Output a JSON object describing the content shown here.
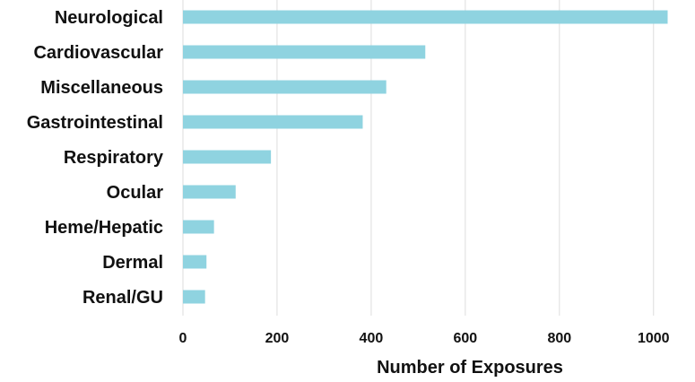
{
  "chart_data": {
    "type": "bar",
    "orientation": "horizontal",
    "title": "",
    "xlabel": "Number of Exposures",
    "ylabel": "",
    "categories": [
      "Neurological",
      "Cardiovascular",
      "Miscellaneous",
      "Gastrointestinal",
      "Respiratory",
      "Ocular",
      "Heme/Hepatic",
      "Dermal",
      "Renal/GU"
    ],
    "values": [
      1030,
      515,
      432,
      382,
      187,
      112,
      66,
      50,
      47
    ],
    "xlim": [
      0,
      1050
    ],
    "xticks": [
      0,
      200,
      400,
      600,
      800,
      1000
    ],
    "xtick_labels": [
      "0",
      "200",
      "400",
      "600",
      "800",
      "1000"
    ],
    "grid": "vertical",
    "legend": "none",
    "bar_color": "#8fd3e0",
    "grid_color": "#dddddd"
  }
}
